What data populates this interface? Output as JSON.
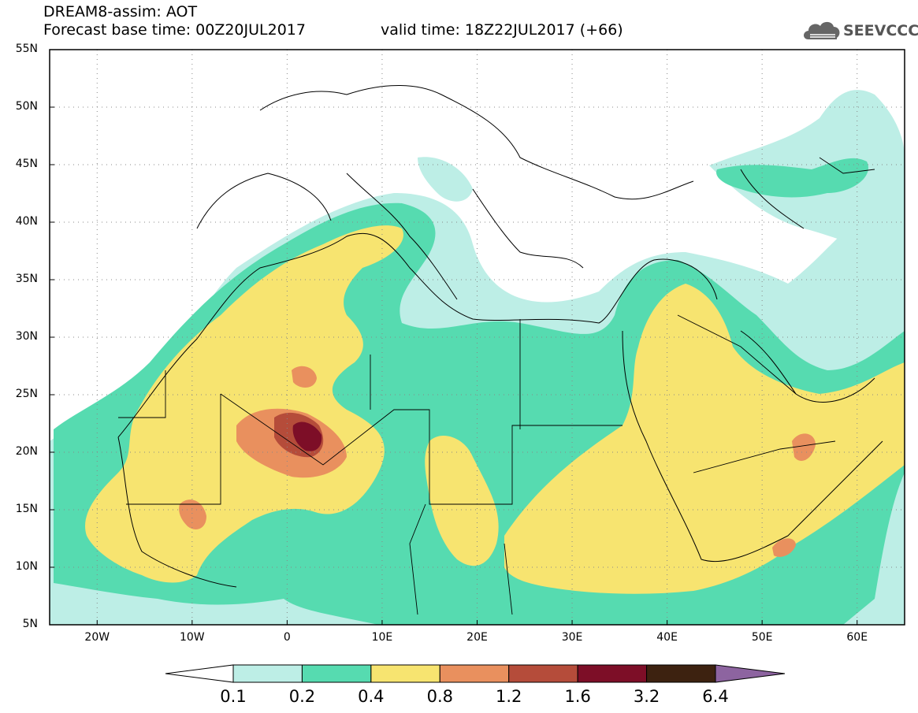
{
  "header": {
    "title_line1": "DREAM8-assim: AOT",
    "title_line2": "Forecast base time: 00Z20JUL2017",
    "valid_time": "valid time: 18Z22JUL2017 (+66)",
    "logo_text": "SEEVCCC",
    "logo_icon": "cloud-icon"
  },
  "map": {
    "lat_ticks": [
      "55N",
      "50N",
      "45N",
      "40N",
      "35N",
      "30N",
      "25N",
      "20N",
      "15N",
      "10N",
      "5N"
    ],
    "lon_ticks": [
      "20W",
      "10W",
      "0",
      "10E",
      "20E",
      "30E",
      "40E",
      "50E",
      "60E"
    ],
    "lon_range": [
      -25,
      65
    ],
    "lat_range": [
      5,
      55
    ],
    "grid": "dotted"
  },
  "colorbar": {
    "labels": [
      "0.1",
      "0.2",
      "0.4",
      "0.8",
      "1.2",
      "1.6",
      "3.2",
      "6.4"
    ],
    "colors": [
      "#ffffff",
      "#bdeee6",
      "#56dbb0",
      "#f7e470",
      "#e9905e",
      "#b54c3a",
      "#7d0e27",
      "#3d2210",
      "#8d64a0"
    ]
  }
}
